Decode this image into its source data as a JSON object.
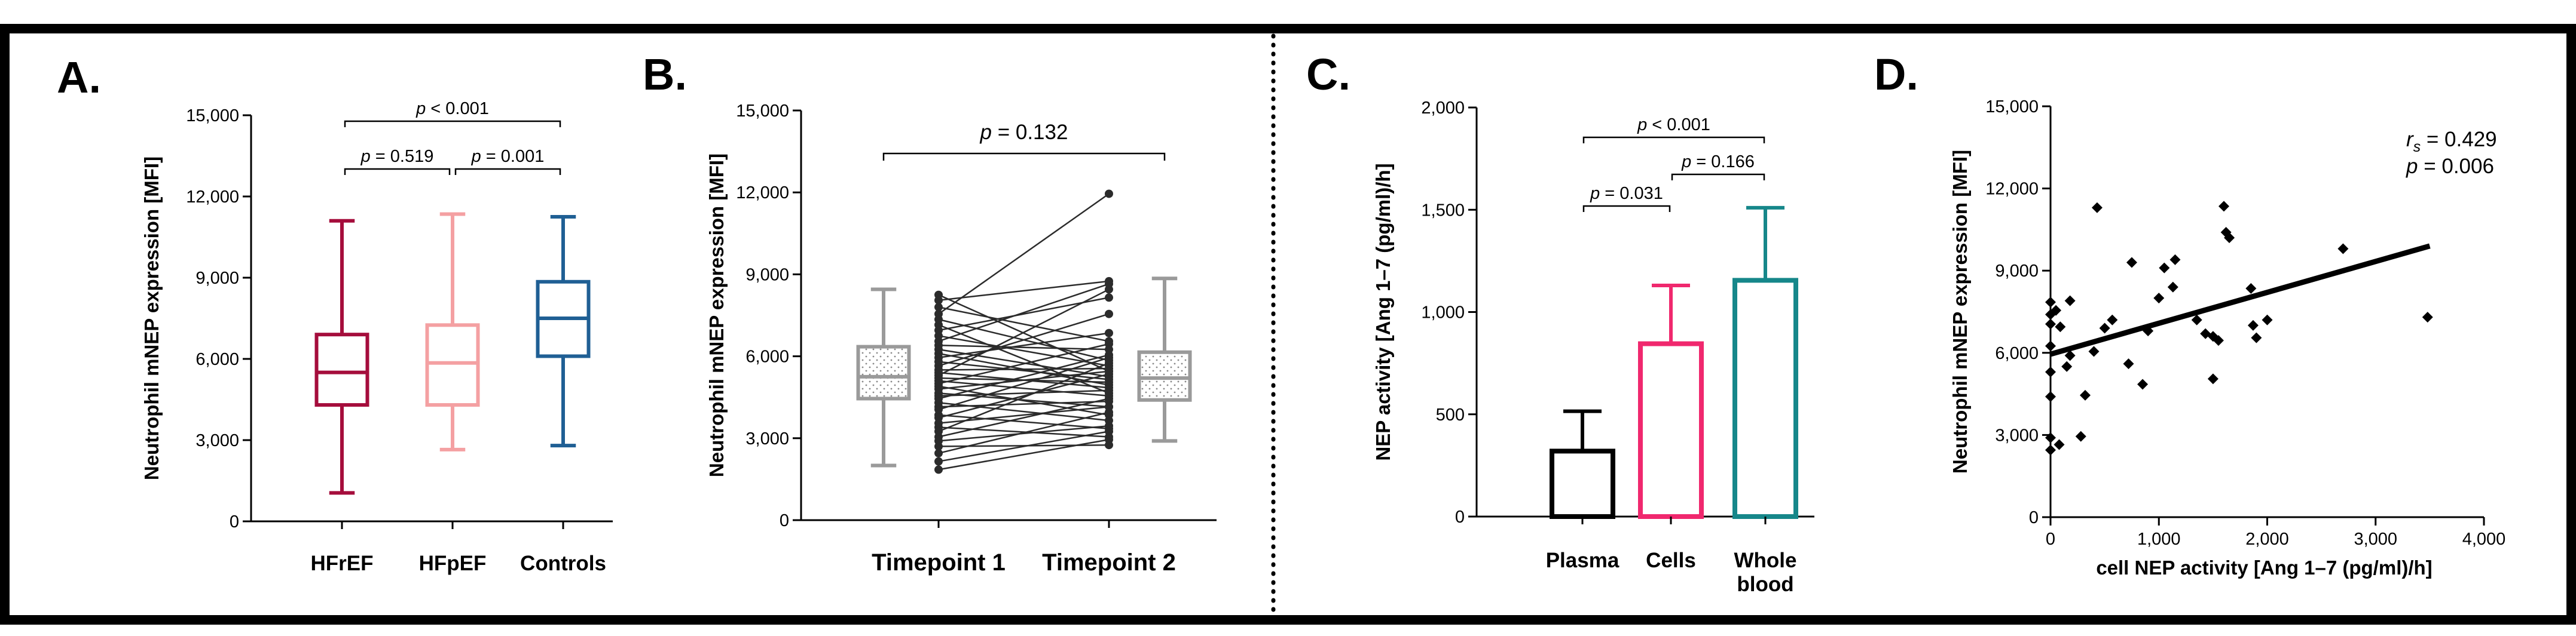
{
  "colors": {
    "hfref": "#a50d3c",
    "hfpef": "#f4a0a2",
    "controls": "#1f5f94",
    "timepoint_gray": "#9a9a9a",
    "plasma": "#000000",
    "cells": "#f0286e",
    "whole_blood": "#16878a",
    "paired_line": "#2b2b2b",
    "border": "#000000"
  },
  "chart_data": [
    {
      "panel": "A.",
      "type": "box",
      "ylabel": "Neutrophil mNEP expression [MFI]",
      "ylim": [
        0,
        15000
      ],
      "yticks": [
        "0",
        "3,000",
        "6,000",
        "9,000",
        "12,000",
        "15,000"
      ],
      "categories": [
        "HFrEF",
        "HFpEF",
        "Controls"
      ],
      "boxes": [
        {
          "name": "HFrEF",
          "min": 1050,
          "q1": 4300,
          "median": 5500,
          "q3": 6900,
          "max": 11100,
          "color_key": "hfref"
        },
        {
          "name": "HFpEF",
          "min": 2650,
          "q1": 4300,
          "median": 5850,
          "q3": 7250,
          "max": 11350,
          "color_key": "hfpef"
        },
        {
          "name": "Controls",
          "min": 2800,
          "q1": 6100,
          "median": 7500,
          "q3": 8850,
          "max": 11250,
          "color_key": "controls"
        }
      ],
      "comparisons": [
        {
          "from": "HFrEF",
          "to": "HFpEF",
          "p_prefix": "p",
          "p_text": " = 0.519"
        },
        {
          "from": "HFpEF",
          "to": "Controls",
          "p_prefix": "p",
          "p_text": " = 0.001"
        },
        {
          "from": "HFrEF",
          "to": "Controls",
          "p_prefix": "p",
          "p_text": " < 0.001"
        }
      ]
    },
    {
      "panel": "B.",
      "type": "box_paired",
      "ylabel": "Neutrophil mNEP expression [MFI]",
      "ylim": [
        0,
        15000
      ],
      "yticks": [
        "0",
        "3,000",
        "6,000",
        "9,000",
        "12,000",
        "15,000"
      ],
      "categories": [
        "Timepoint 1",
        "Timepoint 2"
      ],
      "boxes": [
        {
          "name": "Timepoint 1",
          "min": 2000,
          "q1": 4450,
          "median": 5250,
          "q3": 6350,
          "max": 8450
        },
        {
          "name": "Timepoint 2",
          "min": 2900,
          "q1": 4400,
          "median": 5200,
          "q3": 6150,
          "max": 8850
        }
      ],
      "paired_values": [
        [
          1850,
          2950
        ],
        [
          2150,
          3250
        ],
        [
          2450,
          3950
        ],
        [
          2700,
          2750
        ],
        [
          2900,
          3450
        ],
        [
          3050,
          4450
        ],
        [
          3250,
          5750
        ],
        [
          3400,
          3050
        ],
        [
          3550,
          4150
        ],
        [
          3750,
          5350
        ],
        [
          3850,
          3350
        ],
        [
          4050,
          5950
        ],
        [
          4150,
          4350
        ],
        [
          4300,
          3650
        ],
        [
          4450,
          6050
        ],
        [
          4550,
          4750
        ],
        [
          4650,
          4150
        ],
        [
          4800,
          5450
        ],
        [
          4900,
          3850
        ],
        [
          5000,
          6450
        ],
        [
          5100,
          4550
        ],
        [
          5200,
          5050
        ],
        [
          5300,
          8450
        ],
        [
          5400,
          4850
        ],
        [
          5500,
          5550
        ],
        [
          5650,
          7550
        ],
        [
          5800,
          5150
        ],
        [
          5950,
          6850
        ],
        [
          6100,
          4950
        ],
        [
          6250,
          5250
        ],
        [
          6400,
          6250
        ],
        [
          6550,
          8650
        ],
        [
          6750,
          5650
        ],
        [
          6950,
          8150
        ],
        [
          7150,
          4650
        ],
        [
          7350,
          5850
        ],
        [
          7550,
          11950
        ],
        [
          7800,
          6550
        ],
        [
          8050,
          8750
        ],
        [
          8250,
          5450
        ]
      ],
      "comparisons": [
        {
          "from": "Timepoint 1",
          "to": "Timepoint 2",
          "p_prefix": "p",
          "p_text": " = 0.132"
        }
      ]
    },
    {
      "panel": "C.",
      "type": "bar",
      "ylabel": "NEP activity [Ang 1–7 (pg/ml)/h]",
      "ylim": [
        0,
        2000
      ],
      "yticks": [
        "0",
        "500",
        "1,000",
        "1,500",
        "2,000"
      ],
      "categories": [
        "Plasma",
        "Cells",
        "Whole blood"
      ],
      "category_lines": [
        [
          "Plasma"
        ],
        [
          "Cells"
        ],
        [
          "Whole",
          "blood"
        ]
      ],
      "values": [
        320,
        845,
        1155
      ],
      "errors": [
        195,
        285,
        355
      ],
      "color_keys": [
        "plasma",
        "cells",
        "whole_blood"
      ],
      "comparisons": [
        {
          "from": "Plasma",
          "to": "Cells",
          "p_prefix": "p",
          "p_text": " = 0.031"
        },
        {
          "from": "Cells",
          "to": "Whole blood",
          "p_prefix": "p",
          "p_text": " = 0.166"
        },
        {
          "from": "Plasma",
          "to": "Whole blood",
          "p_prefix": "p",
          "p_text": " < 0.001"
        }
      ]
    },
    {
      "panel": "D.",
      "type": "scatter",
      "xlabel": "cell NEP activity [Ang 1–7 (pg/ml)/h]",
      "ylabel": "Neutrophil mNEP expression [MFI]",
      "xlim": [
        0,
        4000
      ],
      "ylim": [
        0,
        15000
      ],
      "xticks": [
        "0",
        "1,000",
        "2,000",
        "3,000",
        "4,000"
      ],
      "yticks": [
        "0",
        "3,000",
        "6,000",
        "9,000",
        "12,000",
        "15,000"
      ],
      "points": [
        [
          0,
          2450
        ],
        [
          0,
          2900
        ],
        [
          0,
          4400
        ],
        [
          0,
          5300
        ],
        [
          0,
          6250
        ],
        [
          0,
          7050
        ],
        [
          0,
          7400
        ],
        [
          0,
          7850
        ],
        [
          50,
          7550
        ],
        [
          80,
          2650
        ],
        [
          90,
          6950
        ],
        [
          150,
          5500
        ],
        [
          180,
          5900
        ],
        [
          180,
          7900
        ],
        [
          280,
          2950
        ],
        [
          320,
          4450
        ],
        [
          400,
          6050
        ],
        [
          430,
          11300
        ],
        [
          500,
          6900
        ],
        [
          570,
          7200
        ],
        [
          720,
          5600
        ],
        [
          750,
          9300
        ],
        [
          850,
          4850
        ],
        [
          900,
          6800
        ],
        [
          1000,
          8000
        ],
        [
          1050,
          9100
        ],
        [
          1130,
          8400
        ],
        [
          1150,
          9400
        ],
        [
          1350,
          7200
        ],
        [
          1430,
          6700
        ],
        [
          1500,
          5050
        ],
        [
          1500,
          6600
        ],
        [
          1550,
          6450
        ],
        [
          1600,
          11350
        ],
        [
          1620,
          10400
        ],
        [
          1650,
          10200
        ],
        [
          1850,
          8350
        ],
        [
          1870,
          7000
        ],
        [
          1900,
          6550
        ],
        [
          2000,
          7200
        ],
        [
          2700,
          9800
        ],
        [
          3480,
          7300
        ]
      ],
      "regression": {
        "x": [
          0,
          3500
        ],
        "y": [
          5950,
          9900
        ]
      },
      "stat_r_prefix": "r",
      "stat_r_sub": "s",
      "stat_r_text": " = 0.429",
      "stat_p_prefix": "p",
      "stat_p_text": " = 0.006"
    }
  ]
}
